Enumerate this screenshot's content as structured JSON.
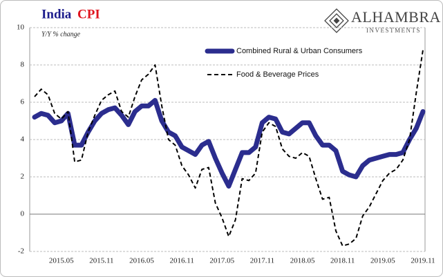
{
  "chart_data": {
    "type": "line",
    "title": "India",
    "title_accent": "CPI",
    "ylabel": "Y/Y % change",
    "logo": {
      "name": "ALHAMBRA",
      "subtitle": "INVESTMENTS"
    },
    "categories": [
      null,
      null,
      null,
      null,
      "2015.05",
      null,
      null,
      null,
      null,
      null,
      "2015.11",
      null,
      null,
      null,
      null,
      null,
      "2016.05",
      null,
      null,
      null,
      null,
      null,
      "2016.11",
      null,
      null,
      null,
      null,
      null,
      "2017.05",
      null,
      null,
      null,
      null,
      null,
      "2017.11",
      null,
      null,
      null,
      null,
      null,
      "2018.05",
      null,
      null,
      null,
      null,
      null,
      "2018.11",
      null,
      null,
      null,
      null,
      null,
      "2019.05",
      null,
      null,
      null,
      null,
      null,
      "2019.11"
    ],
    "series": [
      {
        "name": "Combined Rural & Urban Consumers",
        "color": "#2b2d8e",
        "dash": false,
        "values": [
          5.2,
          5.4,
          5.3,
          4.9,
          5.0,
          5.4,
          3.7,
          3.7,
          4.4,
          5.0,
          5.4,
          5.6,
          5.7,
          5.3,
          4.8,
          5.5,
          5.8,
          5.8,
          6.1,
          5.0,
          4.4,
          4.2,
          3.6,
          3.4,
          3.2,
          3.7,
          3.9,
          3.0,
          2.2,
          1.5,
          2.4,
          3.3,
          3.3,
          3.6,
          4.9,
          5.2,
          5.1,
          4.4,
          4.3,
          4.6,
          4.9,
          4.9,
          4.2,
          3.7,
          3.7,
          3.4,
          2.3,
          2.1,
          2.0,
          2.6,
          2.9,
          3.0,
          3.1,
          3.2,
          3.2,
          3.3,
          4.0,
          4.6,
          5.5
        ]
      },
      {
        "name": "Food & Beverage Prices",
        "color": "#000000",
        "dash": true,
        "values": [
          6.3,
          6.7,
          6.4,
          5.4,
          5.1,
          5.5,
          2.8,
          2.9,
          4.4,
          5.3,
          6.1,
          6.4,
          6.6,
          5.5,
          5.2,
          6.3,
          7.2,
          7.5,
          8.0,
          5.8,
          4.0,
          3.7,
          2.6,
          2.1,
          1.4,
          2.4,
          2.5,
          0.6,
          -0.2,
          -1.2,
          -0.3,
          1.9,
          1.8,
          2.2,
          4.4,
          4.9,
          4.7,
          3.5,
          3.1,
          3.0,
          3.3,
          3.1,
          1.9,
          0.8,
          0.9,
          -0.9,
          -1.7,
          -1.6,
          -1.3,
          -0.1,
          0.4,
          1.1,
          1.8,
          2.2,
          2.4,
          2.9,
          4.0,
          6.5,
          8.8
        ]
      }
    ],
    "ylim": [
      -2,
      10
    ],
    "yticks": [
      -2,
      0,
      2,
      4,
      6,
      8,
      10
    ],
    "grid": true
  }
}
